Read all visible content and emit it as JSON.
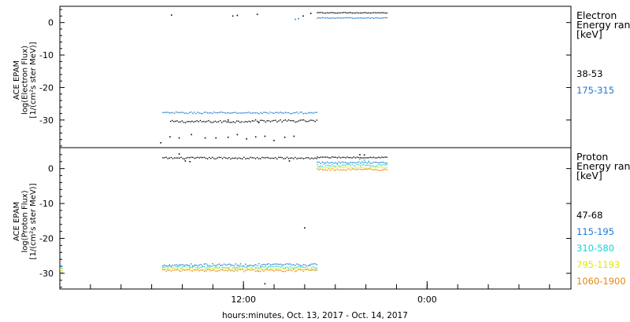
{
  "chart_data": {
    "type": "scatter",
    "xlabel": "hours:minutes, Oct. 13, 2017 - Oct. 14, 2017",
    "x_tick_labels": [
      {
        "hour": 12,
        "label": "12:00"
      },
      {
        "hour": 24,
        "label": "0:00"
      }
    ],
    "xlim_hours": [
      0,
      33.4
    ],
    "x_minor_tick_hours": [
      0,
      2,
      4,
      6,
      8,
      10,
      12,
      14,
      16,
      18,
      20,
      22,
      24,
      26,
      28,
      30,
      32
    ],
    "panels": [
      {
        "ylabel_lines": [
          "ACE EPAM",
          "log(Electron Flux)",
          "[1/(cm²s ster MeV)]"
        ],
        "ylim": [
          -38.5,
          5
        ],
        "yticks": [
          0,
          -10,
          -20,
          -30
        ],
        "legend_title": [
          "Electron",
          "Energy ran",
          "[keV]"
        ],
        "series": [
          {
            "name": "38-53",
            "color": "#000000",
            "segments": [
              {
                "x": [
                  7.2,
                  11.9
                ],
                "y": -30.5,
                "jitter": 0.35
              },
              {
                "x": [
                  12.0,
                  16.8
                ],
                "y": -30.3,
                "jitter": 0.35
              },
              {
                "x": [
                  16.8,
                  21.4
                ],
                "y": 3.0,
                "jitter": 0.1
              }
            ],
            "points": [
              {
                "x": 6.6,
                "y": -37.0
              },
              {
                "x": 7.2,
                "y": -35.2
              },
              {
                "x": 7.8,
                "y": -35.5
              },
              {
                "x": 8.6,
                "y": -34.5
              },
              {
                "x": 9.5,
                "y": -35.5
              },
              {
                "x": 10.2,
                "y": -35.5
              },
              {
                "x": 11.0,
                "y": -35.3
              },
              {
                "x": 11.6,
                "y": -34.5
              },
              {
                "x": 12.2,
                "y": -35.8
              },
              {
                "x": 12.8,
                "y": -35.2
              },
              {
                "x": 13.4,
                "y": -35.0
              },
              {
                "x": 14.0,
                "y": -36.3
              },
              {
                "x": 14.7,
                "y": -35.3
              },
              {
                "x": 15.3,
                "y": -35.0
              },
              {
                "x": 7.3,
                "y": 2.3
              },
              {
                "x": 11.3,
                "y": 2.0
              },
              {
                "x": 11.6,
                "y": 2.2
              },
              {
                "x": 12.9,
                "y": 2.5
              },
              {
                "x": 15.9,
                "y": 2.0
              },
              {
                "x": 16.4,
                "y": 2.8
              },
              {
                "x": 13.0,
                "y": -30.8
              },
              {
                "x": 11.0,
                "y": -30.0
              }
            ]
          },
          {
            "name": "175-315",
            "color": "#1e78d2",
            "segments": [
              {
                "x": [
                  6.7,
                  16.8
                ],
                "y": -27.8,
                "jitter": 0.25
              },
              {
                "x": [
                  16.8,
                  21.4
                ],
                "y": 1.4,
                "jitter": 0.1
              }
            ],
            "points": [
              {
                "x": 15.4,
                "y": 1.0
              },
              {
                "x": 15.6,
                "y": 1.2
              }
            ]
          }
        ]
      },
      {
        "ylabel_lines": [
          "ACE EPAM",
          "log(Proton Flux)",
          "[1/(cm²s ster MeV)]"
        ],
        "ylim": [
          -34.5,
          6
        ],
        "yticks": [
          0,
          -10,
          -20,
          -30
        ],
        "legend_title": [
          "Proton",
          "Energy ran",
          "[keV]"
        ],
        "series": [
          {
            "name": "47-68",
            "color": "#000000",
            "segments": [
              {
                "x": [
                  6.7,
                  16.8
                ],
                "y": 3.0,
                "jitter": 0.25
              },
              {
                "x": [
                  16.8,
                  21.4
                ],
                "y": 3.2,
                "jitter": 0.15
              }
            ],
            "points": [
              {
                "x": 7.8,
                "y": 4.2
              },
              {
                "x": 8.2,
                "y": 2.2
              },
              {
                "x": 8.5,
                "y": 2.0
              },
              {
                "x": 15.0,
                "y": 2.2
              },
              {
                "x": 16.0,
                "y": -17.0
              },
              {
                "x": 13.4,
                "y": -33.0
              },
              {
                "x": 19.6,
                "y": 4.0
              },
              {
                "x": 19.9,
                "y": 3.9
              }
            ]
          },
          {
            "name": "115-195",
            "color": "#1e78d2",
            "segments": [
              {
                "x": [
                  0.0,
                  0.2
                ],
                "y": -28.0,
                "jitter": 0.3
              },
              {
                "x": [
                  6.7,
                  16.8
                ],
                "y": -27.6,
                "jitter": 0.35
              },
              {
                "x": [
                  16.8,
                  21.4
                ],
                "y": 1.7,
                "jitter": 0.2
              }
            ],
            "points": []
          },
          {
            "name": "310-580",
            "color": "#19d2d2",
            "segments": [
              {
                "x": [
                  0.0,
                  0.2
                ],
                "y": -28.5,
                "jitter": 0.3
              },
              {
                "x": [
                  6.7,
                  16.8
                ],
                "y": -28.2,
                "jitter": 0.35
              },
              {
                "x": [
                  16.8,
                  21.4
                ],
                "y": 0.9,
                "jitter": 0.3
              }
            ],
            "points": [
              {
                "x": 19.6,
                "y": 2.6
              },
              {
                "x": 19.9,
                "y": 2.4
              },
              {
                "x": 20.2,
                "y": 2.1
              }
            ]
          },
          {
            "name": "795-1193",
            "color": "#e6e600",
            "segments": [
              {
                "x": [
                  0.0,
                  0.2
                ],
                "y": -29.0,
                "jitter": 0.3
              },
              {
                "x": [
                  6.7,
                  16.8
                ],
                "y": -28.8,
                "jitter": 0.35
              },
              {
                "x": [
                  16.8,
                  21.4
                ],
                "y": 0.3,
                "jitter": 0.25
              }
            ],
            "points": []
          },
          {
            "name": "1060-1900",
            "color": "#e6870f",
            "segments": [
              {
                "x": [
                  0.0,
                  0.2
                ],
                "y": -29.4,
                "jitter": 0.3
              },
              {
                "x": [
                  6.7,
                  16.8
                ],
                "y": -29.2,
                "jitter": 0.3
              },
              {
                "x": [
                  16.8,
                  21.4
                ],
                "y": -0.3,
                "jitter": 0.25
              }
            ],
            "points": []
          }
        ]
      }
    ]
  }
}
